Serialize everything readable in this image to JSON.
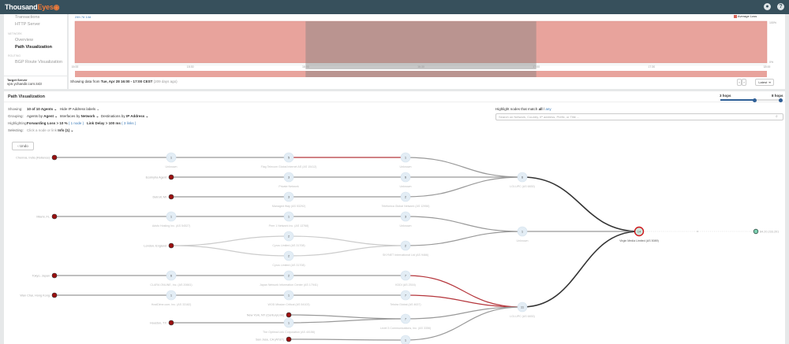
{
  "app": {
    "logo": "ThousandEyes",
    "icons": [
      "chat-icon",
      "help-icon"
    ]
  },
  "sidebar": {
    "items": [
      {
        "label": "Transactions"
      },
      {
        "label": "HTTP Server"
      }
    ],
    "network_header": "NETWORK",
    "network_items": [
      {
        "label": "Overview"
      },
      {
        "label": "Path Visualization",
        "active": true
      }
    ],
    "routing_header": "ROUTING",
    "routing_items": [
      {
        "label": "BGP Route Visualization"
      }
    ]
  },
  "target": {
    "label": "Target Server",
    "value": "vpn.ychandir.com:443"
  },
  "timeline": {
    "ranges": [
      "24h",
      "7d",
      "14d"
    ],
    "legend": "Average Loss",
    "y_max": "100%",
    "y_min": "0%",
    "ticks": [
      "15:00",
      "15:30",
      "16:00",
      "16:30",
      "17:00",
      "17:30",
      "18:00"
    ],
    "selection": [
      "16:00",
      "17:00"
    ],
    "loss_color": "#e8a39c",
    "showing_prefix": "Showing data from",
    "showing_range": "Tue, Apr 28 16:00 - 17:00 CEST",
    "showing_ago": "(209 days ago)",
    "prev": "‹",
    "next": "›",
    "latest": "Latest ⇥"
  },
  "pathviz": {
    "title": "Path Visualization",
    "showing_label": "Showing:",
    "showing_value": "10 of 10 Agents ⌄",
    "ip_labels": "Hide IP Address labels ⌄",
    "grouping_label": "Grouping:",
    "grouping_agents_pre": "Agents by",
    "grouping_agents": "Agent ⌄",
    "grouping_if_pre": "Interfaces by",
    "grouping_if": "Network ⌄",
    "grouping_dest_pre": "Destinations by",
    "grouping_dest": "IP Address ⌄",
    "highlight_label": "Highlighting:",
    "fwd_loss": "Forwarding Loss > 10 %",
    "fwd_count": "( 1 node )",
    "link_delay": "Link Delay > 100 ms",
    "link_count": "( 3 links )",
    "selecting_label": "Selecting:",
    "selecting_hint": "Click a node or link",
    "selecting_info": "Info (1) ⌄",
    "match_label": "Highlight nodes that match",
    "match_all": "all",
    "match_any": "any",
    "search_placeholder": "Search on Network, Country, IP address, Prefix, or Title ...",
    "hops_min": "3 hops",
    "hops_max": "8 hops",
    "hops_value": 3,
    "undo": "‹  Undo",
    "nodes": {
      "chennai": {
        "label": "Chennai, India (Reliance)",
        "type": "agent"
      },
      "ecol": {
        "label": "Ecolnyha Agent",
        "type": "agent"
      },
      "detroit": {
        "label": "Detroit, MI",
        "type": "agent"
      },
      "miami": {
        "label": "Miami, FL",
        "type": "agent"
      },
      "london": {
        "label": "London, England",
        "type": "agent"
      },
      "tokyo": {
        "label": "Tokyo, Japan",
        "type": "agent"
      },
      "wanchai": {
        "label": "Wan Chai, Hong Kong",
        "type": "agent"
      },
      "houston": {
        "label": "Houston, TX",
        "type": "agent"
      },
      "ny": {
        "label": "New York, NY (CenturyLink)",
        "type": "agent"
      },
      "sanjose": {
        "label": "San Jose, CA (AT&T)",
        "type": "agent"
      },
      "a1": {
        "count": "1",
        "label": "Unknown"
      },
      "a2": {
        "count": "1",
        "label": "Adsfo Hosting Inc. (AS 54527)"
      },
      "a3": {
        "count": "6",
        "label": "CLARA ONLINE, Inc. (AS 20661)"
      },
      "a4": {
        "count": "1",
        "label": "HostDime.com, Inc. (AS 33182)"
      },
      "b1": {
        "count": "5",
        "label": "Flag Telecom Global Internet AS (AS 15412)"
      },
      "b2": {
        "count": "3",
        "label": "Private Network"
      },
      "b3": {
        "count": "3",
        "label": "Managed Way (AS 53292)"
      },
      "b4": {
        "count": "1",
        "label": "Peer 1 Network Inc. (AS 13768)"
      },
      "b5": {
        "count": "2",
        "label": "Cyrus Limited (AS 31708)"
      },
      "b6": {
        "count": "2",
        "label": "Cyrus Limited (AS 31708)"
      },
      "b7": {
        "count": "2",
        "label": "Japan Network Information Center (AS 17941)"
      },
      "b8": {
        "count": "1",
        "label": "WOD Mission Critical (AS 54103)"
      },
      "b9": {
        "count": "1",
        "label": "The Optimal Link Corporation (AS 40156)"
      },
      "c1": {
        "count": "1",
        "label": "Unknown"
      },
      "c2": {
        "count": "6",
        "label": "Unknown"
      },
      "c3": {
        "count": "2",
        "label": "Telefonica Global Network (AS 12956)"
      },
      "c4": {
        "count": "3",
        "label": "Unknown"
      },
      "c5": {
        "count": "2",
        "label": "SKYNET International Ltd (AS 9466)"
      },
      "c6": {
        "count": "7",
        "label": "KDDI (AS 2516)"
      },
      "c7": {
        "count": "7",
        "label": "Telstra Global (AS 4637)"
      },
      "c8": {
        "count": "7",
        "label": "Level 3 Communications, Inc. (AS 3356)"
      },
      "c9": {
        "count": "1",
        "label": ""
      },
      "d1": {
        "count": "6",
        "label": "LGI-UPC (AS 6830)"
      },
      "d2": {
        "count": "1",
        "label": "Unknown"
      },
      "d3": {
        "count": "11",
        "label": "LGI-UPC (AS 6830)"
      },
      "virgin": {
        "count": "14",
        "label": "Virgin Media Limited (AS 5089)",
        "loss": true
      },
      "dest": {
        "label": "84.20.233.201",
        "type": "dest"
      }
    },
    "edges": [
      [
        "chennai",
        "a1"
      ],
      [
        "a1",
        "b1"
      ],
      [
        "b1",
        "c1",
        "red"
      ],
      [
        "c1",
        "d1"
      ],
      [
        "ecol",
        "b2"
      ],
      [
        "b2",
        "c2"
      ],
      [
        "c2",
        "d1"
      ],
      [
        "detroit",
        "b3"
      ],
      [
        "b3",
        "c3"
      ],
      [
        "c3",
        "d1"
      ],
      [
        "miami",
        "a2"
      ],
      [
        "a2",
        "b4"
      ],
      [
        "b4",
        "c4"
      ],
      [
        "c4",
        "d2"
      ],
      [
        "london",
        "b5",
        "light"
      ],
      [
        "london",
        "b6",
        "light"
      ],
      [
        "b5",
        "c5",
        "light"
      ],
      [
        "b6",
        "c5",
        "light"
      ],
      [
        "c5",
        "d2"
      ],
      [
        "tokyo",
        "a3"
      ],
      [
        "a3",
        "b7"
      ],
      [
        "b7",
        "c6"
      ],
      [
        "c6",
        "d3",
        "red"
      ],
      [
        "wanchai",
        "a4"
      ],
      [
        "a4",
        "b8"
      ],
      [
        "b8",
        "c7"
      ],
      [
        "c7",
        "d3",
        "red"
      ],
      [
        "houston",
        "b9"
      ],
      [
        "b9",
        "c8"
      ],
      [
        "ny",
        "c8"
      ],
      [
        "c8",
        "d3"
      ],
      [
        "sanjose",
        "c9"
      ],
      [
        "c9",
        "d3"
      ],
      [
        "d1",
        "virgin",
        "dark"
      ],
      [
        "d2",
        "virgin"
      ],
      [
        "d3",
        "virgin",
        "dark"
      ],
      [
        "virgin",
        "dest",
        "dashed"
      ]
    ],
    "colors": {
      "agent": "#9b1010",
      "node": "#e3edf5",
      "loss_ring": "#d0151a",
      "dest": "#7fd1b2",
      "red_link": "#b5363c"
    }
  }
}
